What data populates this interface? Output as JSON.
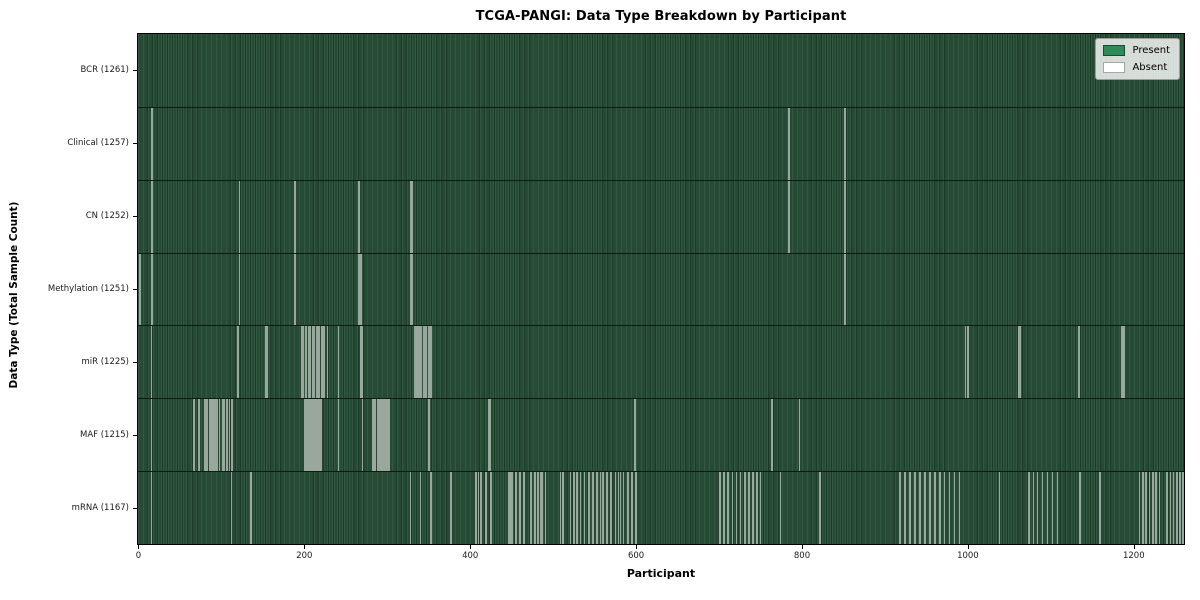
{
  "chart_data": {
    "type": "heatmap",
    "title": "TCGA-PANGI: Data Type Breakdown by Participant",
    "xlabel": "Participant",
    "ylabel": "Data Type (Total Sample Count)",
    "n_participants": 1261,
    "x_ticks": [
      0,
      200,
      400,
      600,
      800,
      1000,
      1200
    ],
    "xlim": [
      -0.5,
      1260.5
    ],
    "grid": false,
    "legend_position": "upper right",
    "legend": [
      {
        "label": "Present",
        "color": "#2e8b57"
      },
      {
        "label": "Absent",
        "color": "#ffffff"
      }
    ],
    "colors": {
      "present": "#2e8b57",
      "absent": "#ffffff",
      "bar_texture_light": "#305a40",
      "bar_texture_dark": "#1d3a29",
      "absent_stripe": "#9aa79c",
      "row_divider": "#0d1a12",
      "axis": "#000000"
    },
    "rows": [
      {
        "label": "BCR (1261)",
        "data_type": "BCR",
        "sample_count": 1261,
        "absent_participants": []
      },
      {
        "label": "Clinical (1257)",
        "data_type": "Clinical",
        "sample_count": 1257,
        "absent_participants": [
          16,
          17,
          784,
          852
        ]
      },
      {
        "label": "CN (1252)",
        "data_type": "CN",
        "sample_count": 1252,
        "absent_participants": [
          16,
          17,
          122,
          189,
          266,
          328,
          330,
          784,
          852
        ]
      },
      {
        "label": "Methylation (1251)",
        "data_type": "Methylation",
        "sample_count": 1251,
        "absent_participants": [
          2,
          16,
          17,
          122,
          189,
          266,
          268,
          328,
          330,
          852
        ]
      },
      {
        "label": "miR (1225)",
        "data_type": "miR",
        "sample_count": 1225,
        "absent_participants": [
          16,
          120,
          153,
          155,
          197,
          199,
          202,
          205,
          207,
          210,
          212,
          215,
          218,
          221,
          224,
          228,
          241,
          268,
          270,
          333,
          335,
          337,
          339,
          341,
          344,
          347,
          350,
          353,
          997,
          1000,
          1061,
          1063,
          1134,
          1185,
          1186,
          1188
        ]
      },
      {
        "label": "MAF (1215)",
        "data_type": "MAF",
        "sample_count": 1215,
        "absent_participants": [
          16,
          67,
          73,
          80,
          83,
          86,
          88,
          90,
          92,
          95,
          98,
          102,
          104,
          107,
          110,
          113,
          200,
          202,
          204,
          206,
          208,
          210,
          212,
          214,
          216,
          218,
          220,
          241,
          270,
          282,
          284,
          286,
          288,
          290,
          292,
          294,
          296,
          298,
          300,
          302,
          350,
          422,
          424,
          599,
          764,
          797
        ]
      },
      {
        "label": "mRNA (1167)",
        "data_type": "mRNA",
        "sample_count": 1167,
        "absent_participants": [
          16,
          112,
          136,
          328,
          340,
          353,
          377,
          407,
          410,
          413,
          419,
          425,
          447,
          449,
          451,
          455,
          460,
          465,
          473,
          478,
          482,
          485,
          487,
          491,
          509,
          512,
          521,
          525,
          529,
          533,
          538,
          543,
          548,
          553,
          557,
          560,
          565,
          570,
          575,
          579,
          581,
          585,
          590,
          595,
          600,
          701,
          706,
          711,
          716,
          721,
          726,
          731,
          736,
          741,
          746,
          750,
          774,
          822,
          918,
          924,
          930,
          936,
          942,
          948,
          954,
          960,
          966,
          972,
          978,
          984,
          990,
          1038,
          1074,
          1079,
          1084,
          1090,
          1096,
          1102,
          1108,
          1135,
          1159,
          1207,
          1211,
          1215,
          1219,
          1223,
          1227,
          1231,
          1240,
          1244,
          1248,
          1252,
          1256,
          1259
        ]
      }
    ]
  }
}
